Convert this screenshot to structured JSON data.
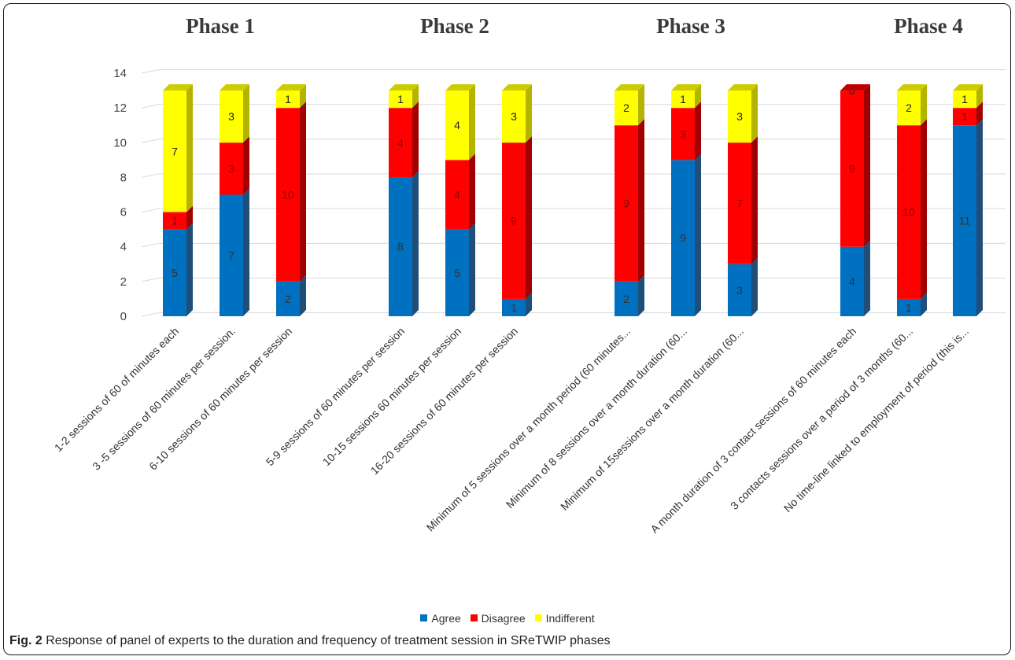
{
  "phases": [
    "Phase 1",
    "Phase 2",
    "Phase 3",
    "Phase 4"
  ],
  "caption": {
    "label": "Fig. 2",
    "text": " Response of panel of experts to the duration and frequency of treatment session in SReTWIP phases"
  },
  "chart_data": {
    "type": "bar",
    "stacked": true,
    "ylim": [
      0,
      14
    ],
    "yticks": [
      0,
      2,
      4,
      6,
      8,
      10,
      12,
      14
    ],
    "grid": true,
    "legend_position": "bottom",
    "categories": [
      "1-2 sessions of 60 of minutes each",
      "3 -5 sessions of 60 minutes per session.",
      "6-10 sessions of 60 minutes per session",
      "5-9 sessions of 60 minutes per session",
      "10-15 sessions 60 minutes per session",
      "16-20 sessions of 60 minutes per session",
      "Minimum of 5 sessions over a month period (60 minutes...",
      "Minimum of 8 sessions over a month duration (60...",
      "Minimum of 15sessions over a month duration (60...",
      "A month duration of 3 contact sessions of 60 minutes each",
      "3 contacts sessions over a period of 3 months (60...",
      "No time-line linked to employment of period (this is..."
    ],
    "series": [
      {
        "name": "Agree",
        "color": "#0070c0",
        "values": [
          5,
          7,
          2,
          8,
          5,
          1,
          2,
          9,
          3,
          4,
          1,
          11
        ]
      },
      {
        "name": "Disagree",
        "color": "#ff0000",
        "values": [
          1,
          3,
          10,
          4,
          4,
          9,
          9,
          3,
          7,
          9,
          10,
          1
        ]
      },
      {
        "name": "Indifferent",
        "color": "#ffff00",
        "values": [
          7,
          3,
          1,
          1,
          4,
          3,
          2,
          1,
          3,
          0,
          2,
          1
        ]
      }
    ]
  }
}
